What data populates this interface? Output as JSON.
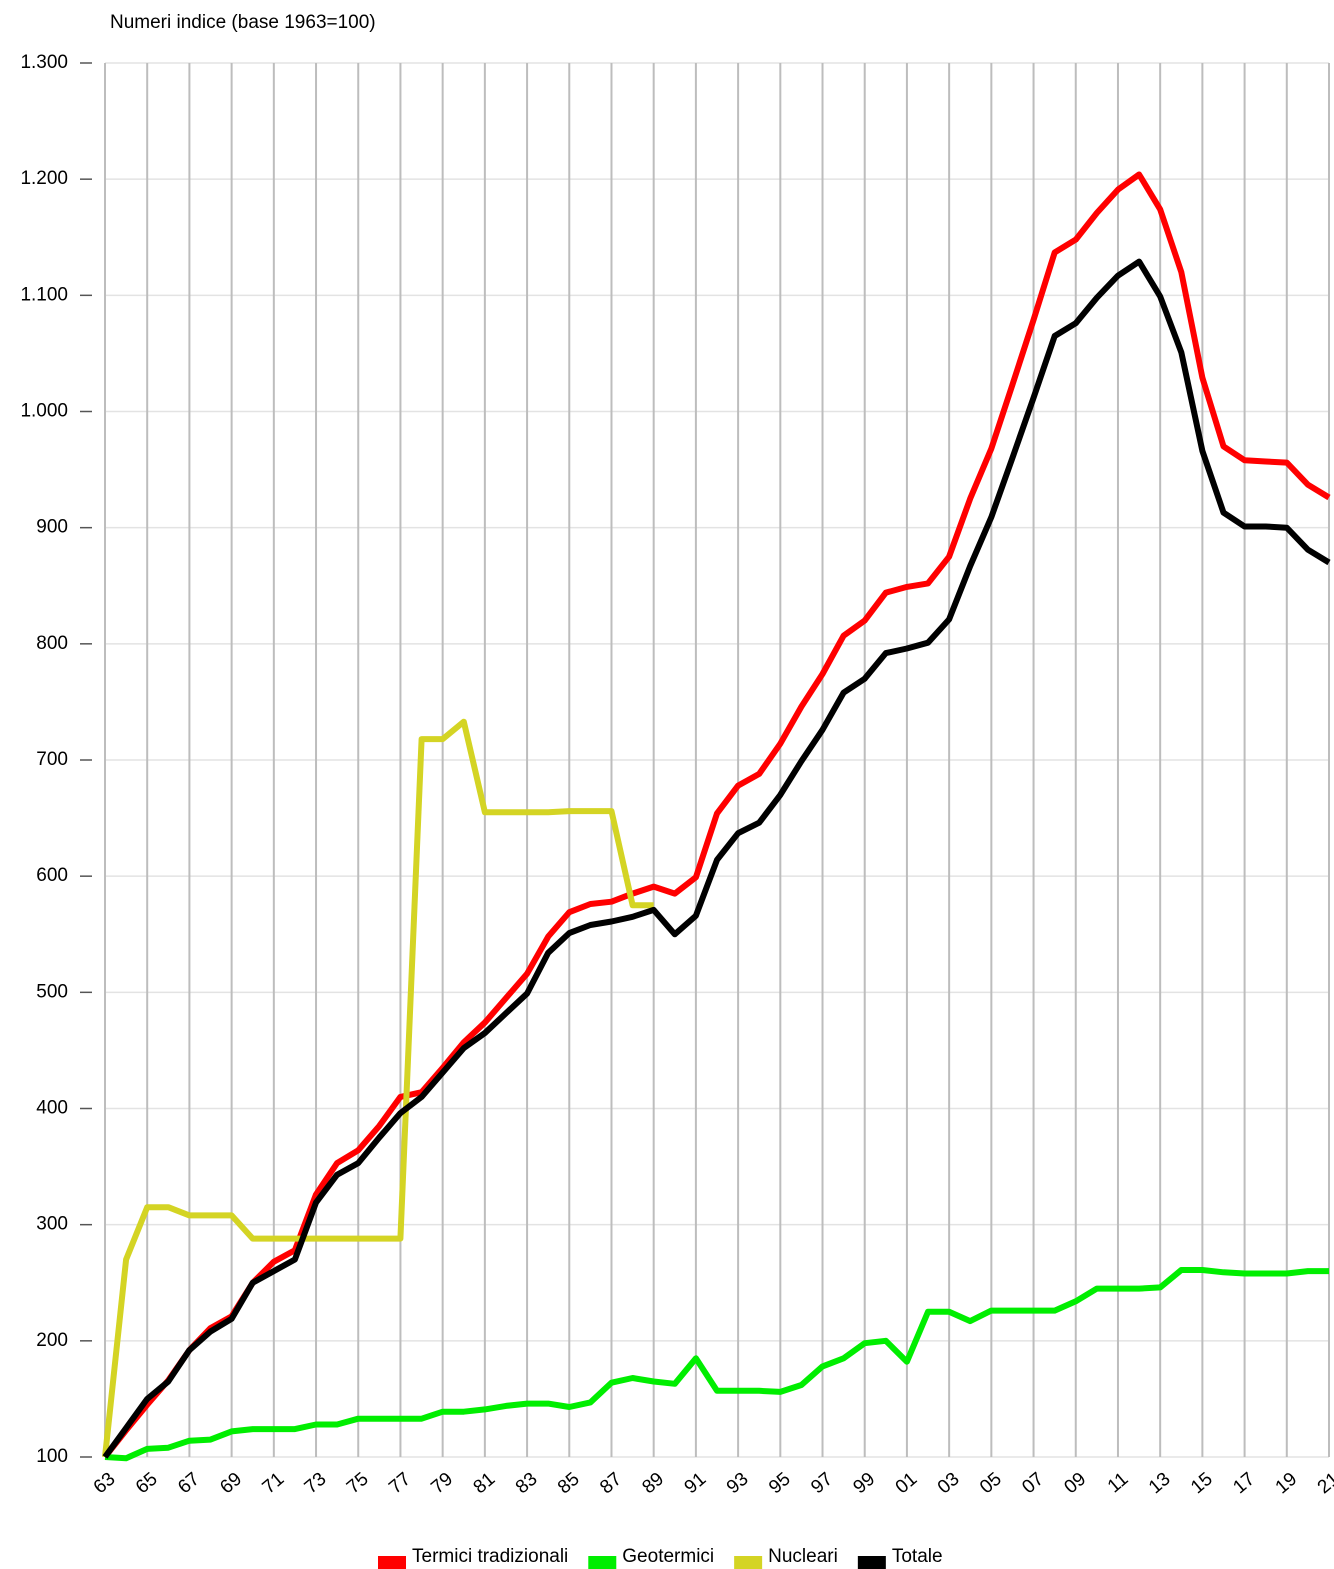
{
  "chart_data": {
    "type": "line",
    "title": "Numeri indice (base 1963=100)",
    "categories": [
      "63",
      null,
      "65",
      null,
      "67",
      null,
      "69",
      null,
      "71",
      null,
      "73",
      null,
      "75",
      null,
      "77",
      null,
      "79",
      null,
      "81",
      null,
      "83",
      null,
      "85",
      null,
      "87",
      null,
      "89",
      null,
      "91",
      null,
      "93",
      null,
      "95",
      null,
      "97",
      null,
      "99",
      null,
      "01",
      null,
      "03",
      null,
      "05",
      null,
      "07",
      null,
      "09",
      null,
      "11",
      null,
      "13",
      null,
      "15",
      null,
      "17",
      null,
      "19",
      null,
      "21"
    ],
    "series": [
      {
        "name": "Termici tradizionali",
        "color": "#ff0000",
        "values": [
          100,
          123,
          145,
          166,
          192,
          211,
          221,
          250,
          268,
          278,
          326,
          353,
          364,
          385,
          410,
          414,
          435,
          457,
          474,
          495,
          516,
          548,
          569,
          576,
          578,
          585,
          591,
          585,
          599,
          654,
          678,
          688,
          714,
          746,
          774,
          807,
          820,
          844,
          849,
          852,
          875,
          925,
          968,
          1023,
          1079,
          1137,
          1148,
          1171,
          1191,
          1204,
          1174,
          1120,
          1029,
          970,
          958,
          957,
          956,
          937,
          926
        ]
      },
      {
        "name": "Geotermici",
        "color": "#00ee00",
        "values": [
          100,
          99,
          107,
          108,
          114,
          115,
          122,
          124,
          124,
          124,
          128,
          128,
          133,
          133,
          133,
          133,
          139,
          139,
          141,
          144,
          146,
          146,
          143,
          147,
          164,
          168,
          165,
          163,
          185,
          157,
          157,
          157,
          156,
          162,
          178,
          185,
          198,
          200,
          182,
          225,
          225,
          217,
          226,
          226,
          226,
          226,
          234,
          245,
          245,
          245,
          246,
          261,
          261,
          259,
          258,
          258,
          258,
          260,
          260
        ]
      },
      {
        "name": "Nucleari",
        "color": "#d4d424",
        "values": [
          100,
          270,
          315,
          315,
          308,
          308,
          308,
          288,
          288,
          288,
          288,
          288,
          288,
          288,
          288,
          718,
          718,
          733,
          655,
          655,
          655,
          655,
          656,
          656,
          656,
          575,
          575,
          null,
          null,
          null,
          null,
          null,
          null,
          null,
          null,
          null,
          null,
          null,
          null,
          null,
          null,
          null,
          null,
          null,
          null,
          null,
          null,
          null,
          null,
          null,
          null,
          null,
          null,
          null,
          null,
          null,
          null,
          null,
          null
        ]
      },
      {
        "name": "Totale",
        "color": "#000000",
        "values": [
          100,
          125,
          150,
          165,
          192,
          208,
          219,
          250,
          260,
          270,
          319,
          343,
          353,
          375,
          396,
          410,
          431,
          452,
          465,
          482,
          499,
          534,
          551,
          558,
          561,
          565,
          571,
          550,
          566,
          614,
          637,
          646,
          670,
          699,
          726,
          758,
          770,
          792,
          796,
          801,
          821,
          867,
          909,
          960,
          1012,
          1065,
          1076,
          1098,
          1117,
          1129,
          1099,
          1051,
          966,
          913,
          901,
          901,
          900,
          881,
          870
        ]
      }
    ],
    "ylim": [
      100,
      1300
    ],
    "yticks": [
      100,
      200,
      300,
      400,
      500,
      600,
      700,
      800,
      900,
      {
        "value": 1000,
        "label": "1.000"
      },
      {
        "value": 1100,
        "label": "1.100"
      },
      {
        "value": 1200,
        "label": "1.200"
      },
      {
        "value": 1300,
        "label": "1.300"
      }
    ],
    "grid": true,
    "legend": "bottom"
  }
}
